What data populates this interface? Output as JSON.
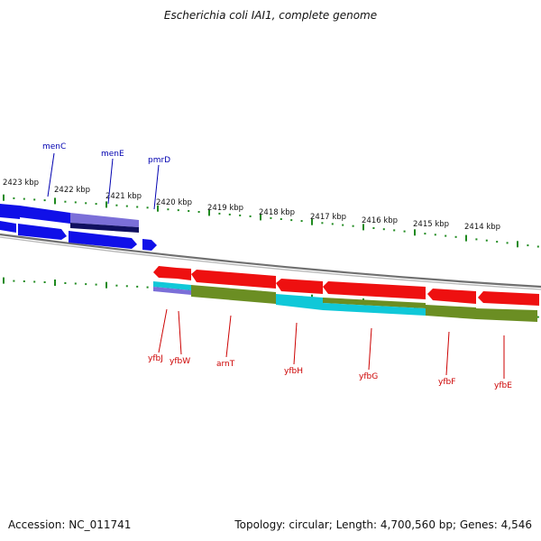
{
  "title": "Escherichia coli IAI1, complete genome",
  "footer": {
    "accession": "Accession: NC_011741",
    "topology": "Topology: circular; Length: 4,700,560 bp; Genes: 4,546"
  },
  "colors": {
    "forward_gene": "#1010e8",
    "reverse_gene": "#ee1010",
    "label_forward": "#0000b0",
    "label_reverse": "#cc0000",
    "ticks": "#1f8a1f",
    "backbone": "#808080",
    "cds_olive": "#6b8e23",
    "cds_cyan": "#10c8d8",
    "cds_lavender": "#7b6fd8"
  },
  "scale_labels": [
    "2423 kbp",
    "2422 kbp",
    "2421 kbp",
    "2420 kbp",
    "2419 kbp",
    "2418 kbp",
    "2417 kbp",
    "2416 kbp",
    "2415 kbp",
    "2414 kbp"
  ],
  "forward_genes": [
    "menC",
    "menE",
    "pmrD"
  ],
  "reverse_genes": [
    "yfbJ",
    "yfbW",
    "arnT",
    "yfbH",
    "yfbG",
    "yfbF",
    "yfbE"
  ]
}
